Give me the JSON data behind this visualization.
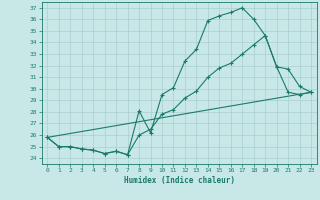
{
  "title": "",
  "xlabel": "Humidex (Indice chaleur)",
  "ylabel": "",
  "background_color": "#c8e8e8",
  "grid_color": "#aacece",
  "line_color": "#1a7a6a",
  "xlim": [
    -0.5,
    23.5
  ],
  "ylim": [
    23.5,
    37.5
  ],
  "yticks": [
    24,
    25,
    26,
    27,
    28,
    29,
    30,
    31,
    32,
    33,
    34,
    35,
    36,
    37
  ],
  "xticks": [
    0,
    1,
    2,
    3,
    4,
    5,
    6,
    7,
    8,
    9,
    10,
    11,
    12,
    13,
    14,
    15,
    16,
    17,
    18,
    19,
    20,
    21,
    22,
    23
  ],
  "series1_x": [
    0,
    1,
    2,
    3,
    4,
    5,
    6,
    7,
    8,
    9,
    10,
    11,
    12,
    13,
    14,
    15,
    16,
    17,
    18,
    19,
    20,
    21,
    22,
    23
  ],
  "series1_y": [
    25.8,
    25.0,
    25.0,
    24.8,
    24.7,
    24.4,
    24.6,
    24.3,
    28.1,
    26.2,
    29.5,
    30.1,
    32.4,
    33.4,
    35.9,
    36.3,
    36.6,
    37.0,
    36.0,
    34.6,
    31.9,
    29.7,
    29.5,
    29.7
  ],
  "series2_x": [
    0,
    1,
    2,
    3,
    4,
    5,
    6,
    7,
    8,
    9,
    10,
    11,
    12,
    13,
    14,
    15,
    16,
    17,
    18,
    19,
    20,
    21,
    22,
    23
  ],
  "series2_y": [
    25.8,
    25.0,
    25.0,
    24.8,
    24.7,
    24.4,
    24.6,
    24.3,
    26.0,
    26.5,
    27.8,
    28.2,
    29.2,
    29.8,
    31.0,
    31.8,
    32.2,
    33.0,
    33.8,
    34.6,
    31.9,
    31.7,
    30.2,
    29.7
  ],
  "series3_x": [
    0,
    23
  ],
  "series3_y": [
    25.8,
    29.7
  ]
}
